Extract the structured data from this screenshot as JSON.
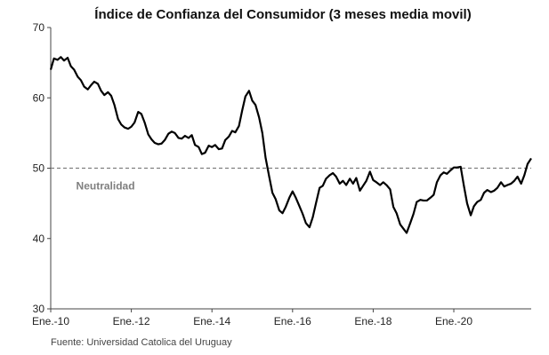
{
  "chart_data": {
    "type": "line",
    "title": "Índice de Confianza del Consumidor (3 meses media movil)",
    "xlabel": "",
    "ylabel": "",
    "ylim": [
      30,
      70
    ],
    "yticks": [
      30,
      40,
      50,
      60,
      70
    ],
    "xtick_labels": [
      {
        "label": "Ene.-10",
        "x": 2010
      },
      {
        "label": "Ene.-12",
        "x": 2012
      },
      {
        "label": "Ene.-14",
        "x": 2014
      },
      {
        "label": "Ene.-16",
        "x": 2016
      },
      {
        "label": "Ene.-18",
        "x": 2018
      },
      {
        "label": "Ene.-20",
        "x": 2020
      }
    ],
    "xlim": [
      2010.0,
      2021.92
    ],
    "grid": false,
    "reference_line": {
      "y": 50,
      "style": "dashed",
      "color": "#7f7f7f"
    },
    "annotation": "Neutralidad",
    "source": "Fuente: Universidad Catolica del Uruguay",
    "series": [
      {
        "name": "Índice de Confianza del Consumidor",
        "color": "#000000",
        "points": [
          [
            2010.0,
            64.0
          ],
          [
            2010.08,
            65.6
          ],
          [
            2010.17,
            65.4
          ],
          [
            2010.25,
            65.8
          ],
          [
            2010.33,
            65.3
          ],
          [
            2010.42,
            65.7
          ],
          [
            2010.5,
            64.5
          ],
          [
            2010.58,
            64.0
          ],
          [
            2010.67,
            63.0
          ],
          [
            2010.75,
            62.5
          ],
          [
            2010.83,
            61.6
          ],
          [
            2010.92,
            61.2
          ],
          [
            2011.0,
            61.8
          ],
          [
            2011.08,
            62.3
          ],
          [
            2011.17,
            62.0
          ],
          [
            2011.25,
            61.0
          ],
          [
            2011.33,
            60.4
          ],
          [
            2011.42,
            60.8
          ],
          [
            2011.5,
            60.3
          ],
          [
            2011.58,
            59.0
          ],
          [
            2011.67,
            57.0
          ],
          [
            2011.75,
            56.2
          ],
          [
            2011.83,
            55.8
          ],
          [
            2011.92,
            55.6
          ],
          [
            2012.0,
            55.9
          ],
          [
            2012.08,
            56.5
          ],
          [
            2012.17,
            58.0
          ],
          [
            2012.25,
            57.7
          ],
          [
            2012.33,
            56.5
          ],
          [
            2012.42,
            54.8
          ],
          [
            2012.5,
            54.1
          ],
          [
            2012.58,
            53.6
          ],
          [
            2012.67,
            53.4
          ],
          [
            2012.75,
            53.5
          ],
          [
            2012.83,
            54.0
          ],
          [
            2012.92,
            54.9
          ],
          [
            2013.0,
            55.2
          ],
          [
            2013.08,
            55.0
          ],
          [
            2013.17,
            54.3
          ],
          [
            2013.25,
            54.2
          ],
          [
            2013.33,
            54.6
          ],
          [
            2013.42,
            54.3
          ],
          [
            2013.5,
            54.7
          ],
          [
            2013.58,
            53.3
          ],
          [
            2013.67,
            53.0
          ],
          [
            2013.75,
            52.0
          ],
          [
            2013.83,
            52.2
          ],
          [
            2013.92,
            53.2
          ],
          [
            2014.0,
            53.0
          ],
          [
            2014.08,
            53.3
          ],
          [
            2014.17,
            52.7
          ],
          [
            2014.25,
            52.8
          ],
          [
            2014.33,
            54.0
          ],
          [
            2014.42,
            54.5
          ],
          [
            2014.5,
            55.3
          ],
          [
            2014.58,
            55.1
          ],
          [
            2014.67,
            56.0
          ],
          [
            2014.75,
            58.2
          ],
          [
            2014.83,
            60.2
          ],
          [
            2014.92,
            61.0
          ],
          [
            2015.0,
            59.6
          ],
          [
            2015.08,
            59.0
          ],
          [
            2015.17,
            57.2
          ],
          [
            2015.25,
            55.0
          ],
          [
            2015.33,
            51.5
          ],
          [
            2015.42,
            48.8
          ],
          [
            2015.5,
            46.5
          ],
          [
            2015.58,
            45.6
          ],
          [
            2015.67,
            44.0
          ],
          [
            2015.75,
            43.6
          ],
          [
            2015.83,
            44.5
          ],
          [
            2015.92,
            45.8
          ],
          [
            2016.0,
            46.7
          ],
          [
            2016.08,
            45.8
          ],
          [
            2016.17,
            44.6
          ],
          [
            2016.25,
            43.5
          ],
          [
            2016.33,
            42.2
          ],
          [
            2016.42,
            41.6
          ],
          [
            2016.5,
            43.0
          ],
          [
            2016.58,
            45.0
          ],
          [
            2016.67,
            47.2
          ],
          [
            2016.75,
            47.5
          ],
          [
            2016.83,
            48.5
          ],
          [
            2016.92,
            49.0
          ],
          [
            2017.0,
            49.3
          ],
          [
            2017.08,
            48.8
          ],
          [
            2017.17,
            47.8
          ],
          [
            2017.25,
            48.2
          ],
          [
            2017.33,
            47.6
          ],
          [
            2017.42,
            48.5
          ],
          [
            2017.5,
            47.8
          ],
          [
            2017.58,
            48.6
          ],
          [
            2017.67,
            46.8
          ],
          [
            2017.75,
            47.5
          ],
          [
            2017.83,
            48.2
          ],
          [
            2017.92,
            49.5
          ],
          [
            2018.0,
            48.3
          ],
          [
            2018.08,
            48.0
          ],
          [
            2018.17,
            47.6
          ],
          [
            2018.25,
            48.0
          ],
          [
            2018.33,
            47.6
          ],
          [
            2018.42,
            47.0
          ],
          [
            2018.5,
            44.5
          ],
          [
            2018.58,
            43.6
          ],
          [
            2018.67,
            42.0
          ],
          [
            2018.75,
            41.4
          ],
          [
            2018.83,
            40.8
          ],
          [
            2018.92,
            42.2
          ],
          [
            2019.0,
            43.5
          ],
          [
            2019.08,
            45.2
          ],
          [
            2019.17,
            45.5
          ],
          [
            2019.25,
            45.4
          ],
          [
            2019.33,
            45.4
          ],
          [
            2019.42,
            45.8
          ],
          [
            2019.5,
            46.2
          ],
          [
            2019.58,
            48.0
          ],
          [
            2019.67,
            49.0
          ],
          [
            2019.75,
            49.4
          ],
          [
            2019.83,
            49.2
          ],
          [
            2019.92,
            49.7
          ],
          [
            2020.0,
            50.1
          ],
          [
            2020.08,
            50.1
          ],
          [
            2020.17,
            50.2
          ],
          [
            2020.25,
            47.5
          ],
          [
            2020.33,
            45.0
          ],
          [
            2020.42,
            43.3
          ],
          [
            2020.5,
            44.6
          ],
          [
            2020.58,
            45.2
          ],
          [
            2020.67,
            45.5
          ],
          [
            2020.75,
            46.5
          ],
          [
            2020.83,
            46.9
          ],
          [
            2020.92,
            46.6
          ],
          [
            2021.0,
            46.8
          ],
          [
            2021.08,
            47.2
          ],
          [
            2021.17,
            48.0
          ],
          [
            2021.25,
            47.4
          ],
          [
            2021.33,
            47.6
          ],
          [
            2021.42,
            47.8
          ],
          [
            2021.5,
            48.2
          ],
          [
            2021.58,
            48.8
          ],
          [
            2021.67,
            47.8
          ],
          [
            2021.75,
            49.0
          ],
          [
            2021.83,
            50.6
          ],
          [
            2021.92,
            51.4
          ]
        ]
      }
    ]
  }
}
